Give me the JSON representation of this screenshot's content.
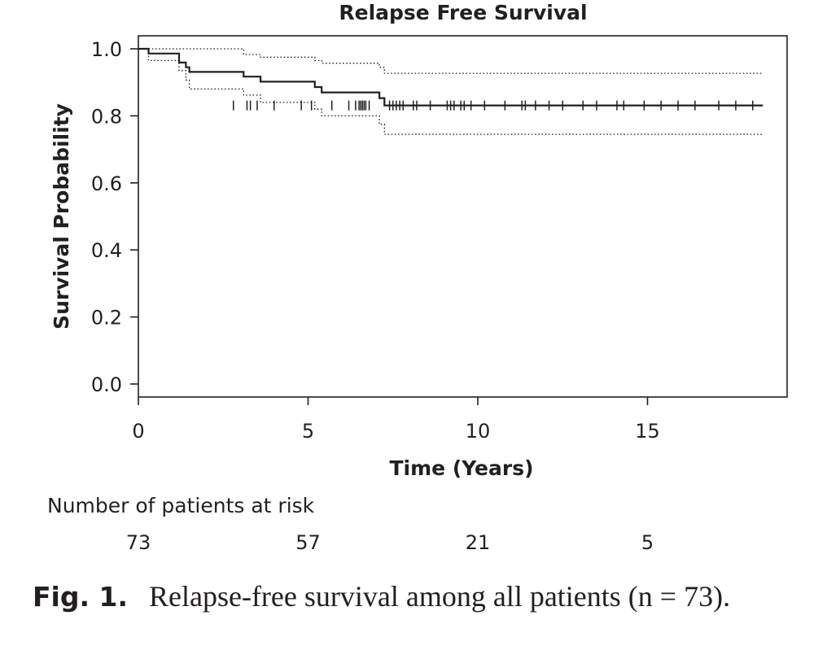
{
  "chart_data": {
    "type": "line",
    "title": "Relapse Free Survival",
    "xlabel": "Time (Years)",
    "ylabel": "Survival Probability",
    "xlim": [
      0,
      19
    ],
    "ylim": [
      0,
      1
    ],
    "x_ticks": [
      0,
      5,
      10,
      15
    ],
    "y_ticks": [
      0.0,
      0.2,
      0.4,
      0.6,
      0.8,
      1.0
    ],
    "x_tick_labels": [
      "0",
      "5",
      "10",
      "15"
    ],
    "y_tick_labels": [
      "0.0",
      "0.2",
      "0.4",
      "0.6",
      "0.8",
      "1.0"
    ],
    "series": [
      {
        "name": "Survival estimate",
        "style": "solid",
        "points": [
          [
            0,
            1.0
          ],
          [
            0.3,
            1.0
          ],
          [
            0.3,
            0.986
          ],
          [
            1.2,
            0.986
          ],
          [
            1.2,
            0.959
          ],
          [
            1.4,
            0.959
          ],
          [
            1.4,
            0.945
          ],
          [
            1.5,
            0.945
          ],
          [
            1.5,
            0.931
          ],
          [
            3.1,
            0.931
          ],
          [
            3.1,
            0.917
          ],
          [
            3.6,
            0.917
          ],
          [
            3.6,
            0.902
          ],
          [
            5.2,
            0.902
          ],
          [
            5.2,
            0.886
          ],
          [
            5.4,
            0.886
          ],
          [
            5.4,
            0.87
          ],
          [
            7.1,
            0.87
          ],
          [
            7.1,
            0.853
          ],
          [
            7.25,
            0.853
          ],
          [
            7.25,
            0.831
          ],
          [
            18.4,
            0.831
          ]
        ],
        "censor_times": [
          2.8,
          3.2,
          3.3,
          3.5,
          4.0,
          4.8,
          5.1,
          5.7,
          6.2,
          6.4,
          6.5,
          6.55,
          6.6,
          6.65,
          6.7,
          6.8,
          7.4,
          7.5,
          7.6,
          7.7,
          7.8,
          8.1,
          8.2,
          8.6,
          9.1,
          9.2,
          9.3,
          9.5,
          9.6,
          9.8,
          10.2,
          10.8,
          11.3,
          11.4,
          11.7,
          12.1,
          12.5,
          13.1,
          13.5,
          14.1,
          14.3,
          14.9,
          15.4,
          15.9,
          16.4,
          17.1,
          17.6,
          18.1
        ],
        "censor_y": 0.831
      },
      {
        "name": "Upper 95% CI",
        "style": "dotted",
        "points": [
          [
            0,
            1.0
          ],
          [
            3.1,
            1.0
          ],
          [
            3.1,
            0.983
          ],
          [
            3.6,
            0.983
          ],
          [
            3.6,
            0.975
          ],
          [
            5.2,
            0.975
          ],
          [
            5.2,
            0.965
          ],
          [
            5.4,
            0.965
          ],
          [
            5.4,
            0.957
          ],
          [
            7.1,
            0.957
          ],
          [
            7.1,
            0.945
          ],
          [
            7.25,
            0.945
          ],
          [
            7.25,
            0.927
          ],
          [
            18.4,
            0.927
          ]
        ]
      },
      {
        "name": "Lower 95% CI",
        "style": "dotted",
        "points": [
          [
            0,
            1.0
          ],
          [
            0.3,
            1.0
          ],
          [
            0.3,
            0.965
          ],
          [
            1.2,
            0.965
          ],
          [
            1.2,
            0.935
          ],
          [
            1.4,
            0.935
          ],
          [
            1.4,
            0.907
          ],
          [
            1.5,
            0.907
          ],
          [
            1.5,
            0.88
          ],
          [
            3.1,
            0.88
          ],
          [
            3.1,
            0.862
          ],
          [
            3.6,
            0.862
          ],
          [
            3.6,
            0.84
          ],
          [
            5.2,
            0.84
          ],
          [
            5.2,
            0.82
          ],
          [
            5.4,
            0.82
          ],
          [
            5.4,
            0.8
          ],
          [
            7.1,
            0.8
          ],
          [
            7.1,
            0.775
          ],
          [
            7.25,
            0.775
          ],
          [
            7.25,
            0.745
          ],
          [
            18.4,
            0.745
          ]
        ]
      }
    ],
    "risk_table": {
      "label": "Number of patients at risk",
      "times": [
        0,
        5,
        10,
        15
      ],
      "counts": [
        "73",
        "57",
        "21",
        "5"
      ]
    }
  },
  "caption": {
    "label": "Fig. 1.",
    "text": "Relapse-free survival among all patients (n = 73)."
  },
  "colors": {
    "ink": "#231f20",
    "background": "#ffffff"
  }
}
